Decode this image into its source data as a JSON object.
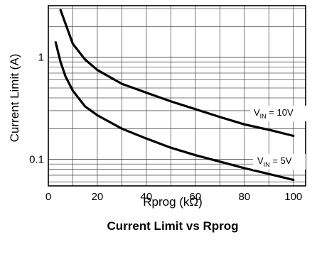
{
  "chart_data": {
    "type": "line",
    "title": "Current Limit vs Rprog",
    "xlabel": "Rprog (kΩ)",
    "ylabel": "Current Limit (A)",
    "xlim": [
      0,
      105
    ],
    "ylim": [
      0.055,
      3.2
    ],
    "yscale": "log",
    "grid": true,
    "x_ticks": [
      0,
      20,
      40,
      60,
      80,
      100
    ],
    "y_ticks": [
      {
        "value": 1,
        "label": "1"
      },
      {
        "value": 0.1,
        "label": "0.1"
      }
    ],
    "series": [
      {
        "name": "VIN = 10V",
        "label_main": "V",
        "label_sub": "IN",
        "label_rest": " = 10V",
        "x": [
          5,
          10,
          15,
          20,
          30,
          40,
          50,
          60,
          70,
          80,
          90,
          100
        ],
        "y": [
          2.9,
          1.35,
          0.95,
          0.75,
          0.55,
          0.45,
          0.37,
          0.31,
          0.26,
          0.22,
          0.195,
          0.17
        ]
      },
      {
        "name": "VIN = 5V",
        "label_main": "V",
        "label_sub": "IN",
        "label_rest": " = 5V",
        "x": [
          3,
          5,
          7,
          10,
          15,
          20,
          30,
          40,
          50,
          60,
          70,
          80,
          90,
          100
        ],
        "y": [
          1.4,
          0.9,
          0.65,
          0.47,
          0.33,
          0.27,
          0.2,
          0.16,
          0.13,
          0.11,
          0.095,
          0.082,
          0.072,
          0.063
        ]
      }
    ]
  }
}
